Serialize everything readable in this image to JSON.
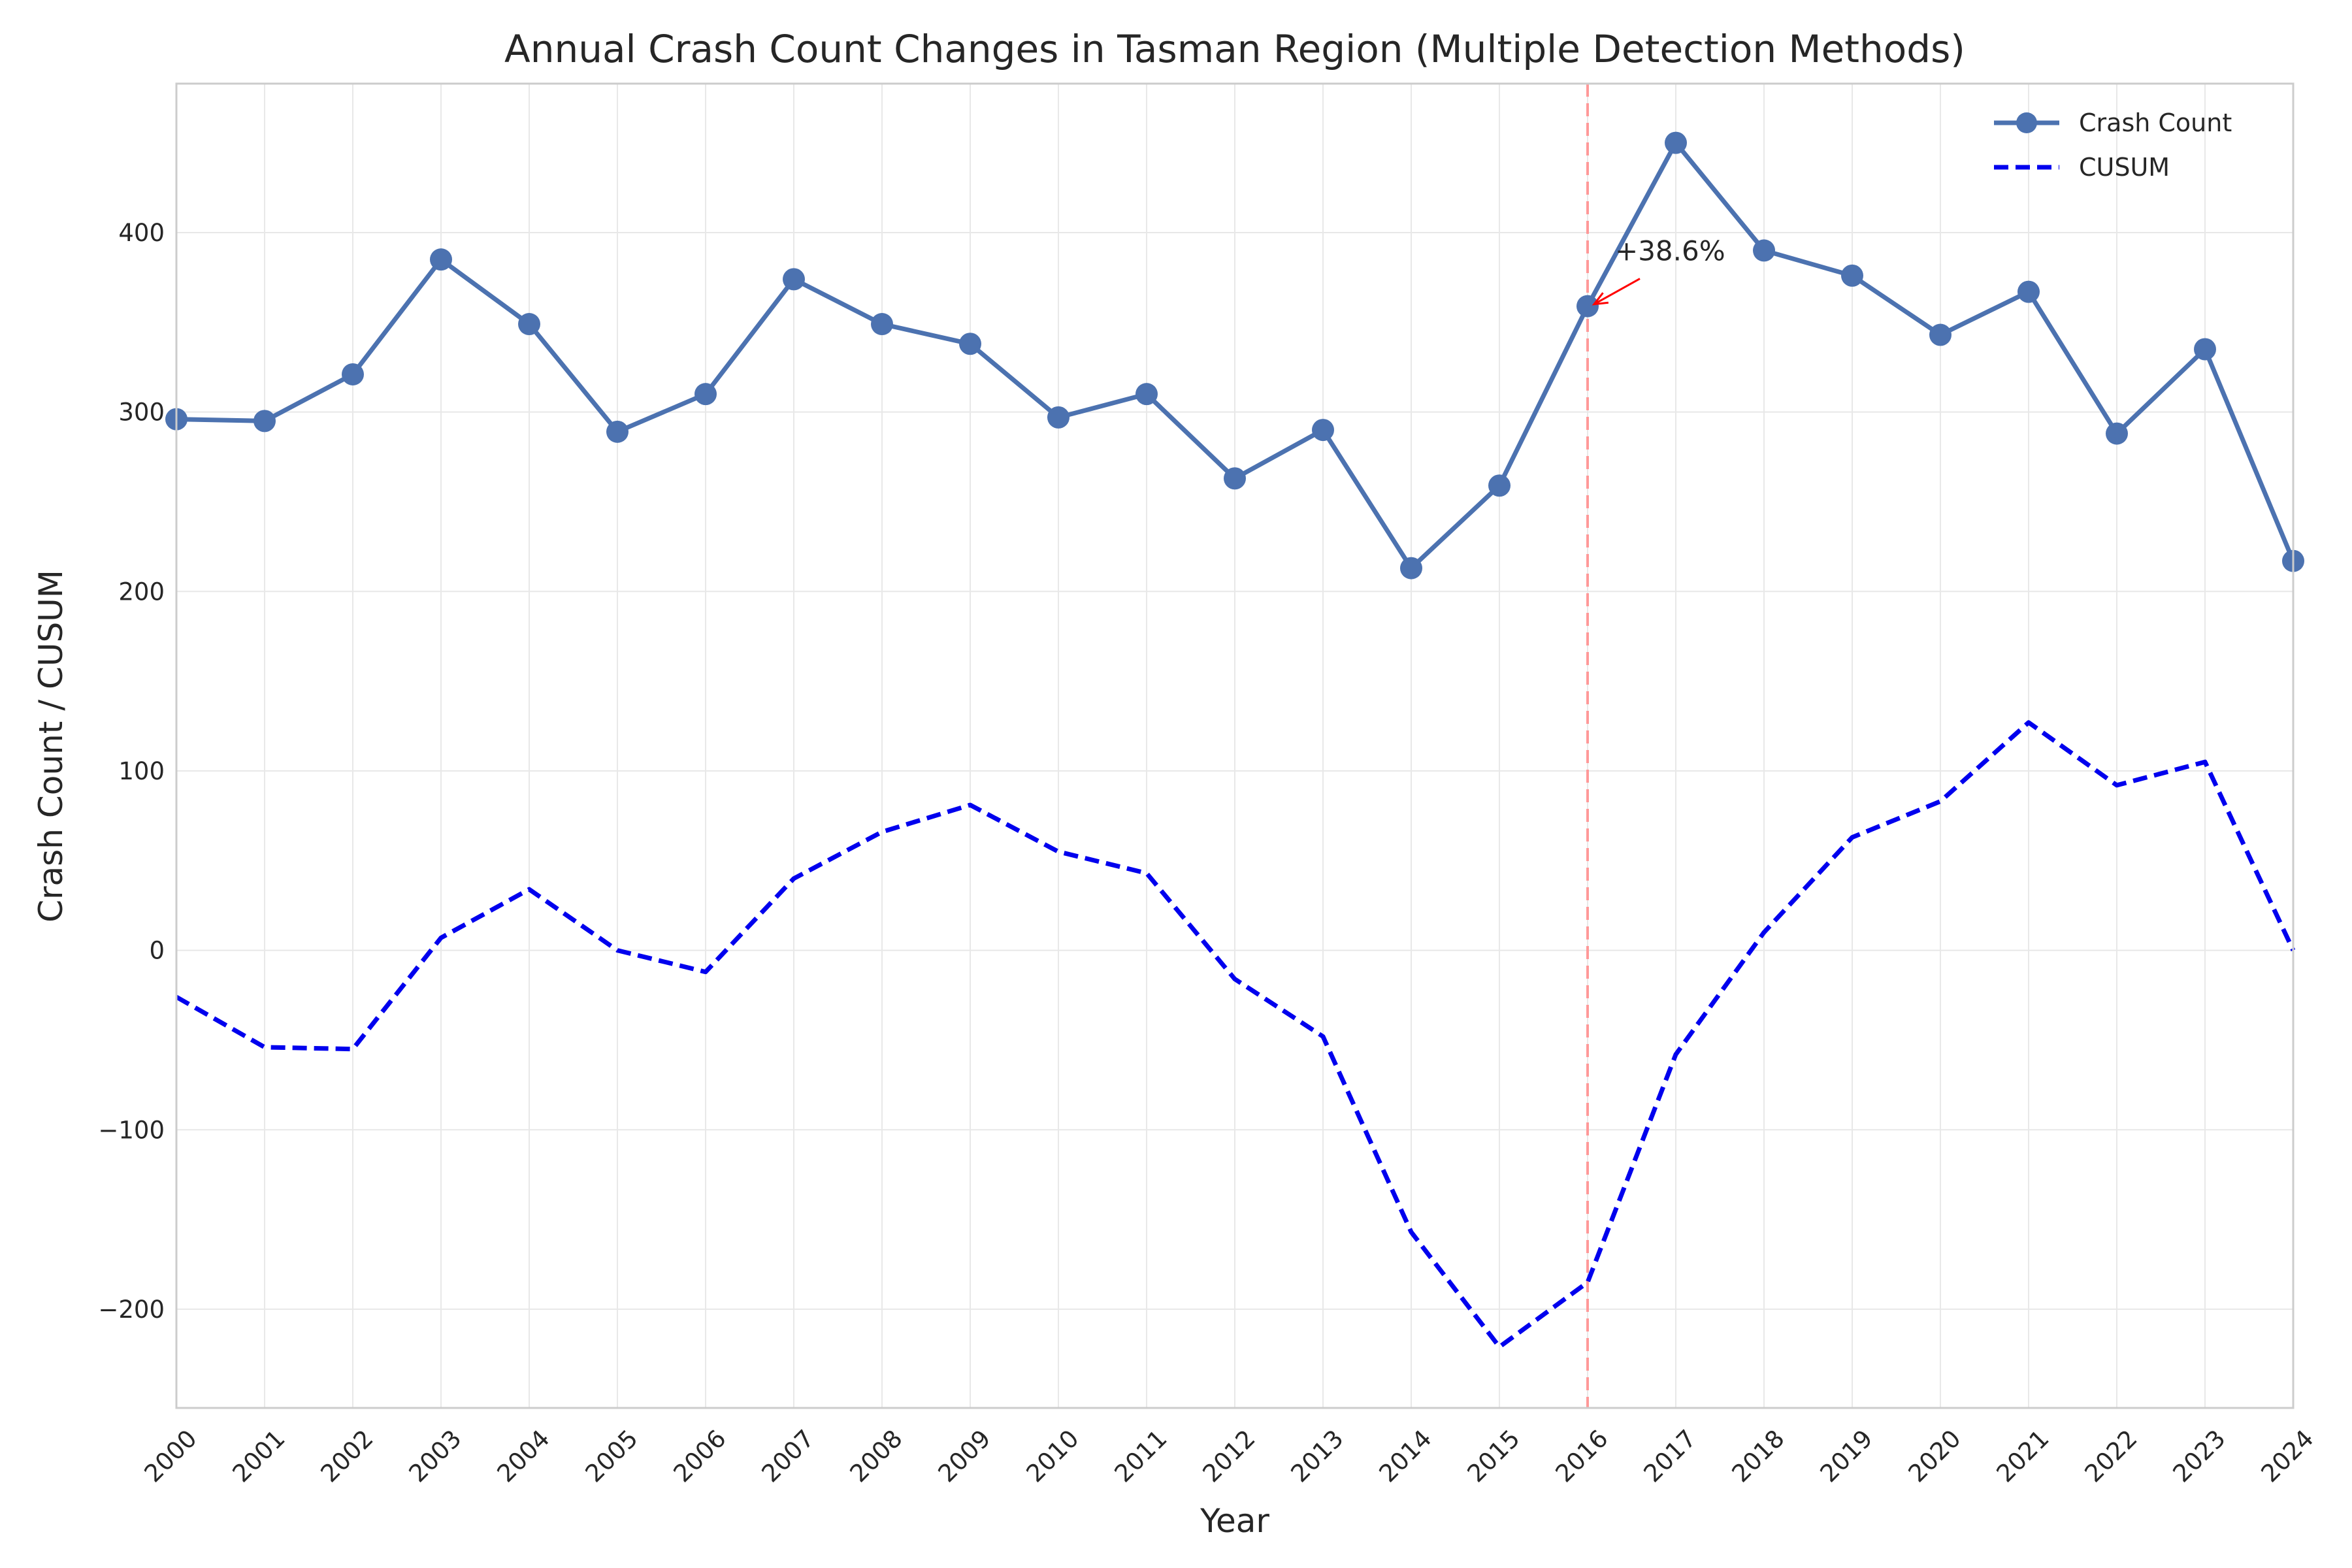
{
  "chart_data": {
    "type": "line",
    "title": "Annual Crash Count Changes in Tasman Region (Multiple Detection Methods)",
    "xlabel": "Year",
    "ylabel": "Crash Count / CUSUM",
    "x": [
      2000,
      2001,
      2002,
      2003,
      2004,
      2005,
      2006,
      2007,
      2008,
      2009,
      2010,
      2011,
      2012,
      2013,
      2014,
      2015,
      2016,
      2017,
      2018,
      2019,
      2020,
      2021,
      2022,
      2023,
      2024
    ],
    "x_tick_labels": [
      "2000",
      "2001",
      "2002",
      "2003",
      "2004",
      "2005",
      "2006",
      "2007",
      "2008",
      "2009",
      "2010",
      "2011",
      "2012",
      "2013",
      "2014",
      "2015",
      "2016",
      "2017",
      "2018",
      "2019",
      "2020",
      "2021",
      "2022",
      "2023",
      "2024"
    ],
    "xlim": [
      2000,
      2024
    ],
    "ylim": [
      -255,
      483
    ],
    "y_ticks": [
      -200,
      -100,
      0,
      100,
      200,
      300,
      400
    ],
    "y_tick_labels": [
      "−200",
      "−100",
      "0",
      "100",
      "200",
      "300",
      "400"
    ],
    "grid": true,
    "legend_position": "top-right",
    "series": [
      {
        "name": "Crash Count",
        "style": "solid-with-circle-markers",
        "color": "#4c72b0",
        "values": [
          296,
          295,
          321,
          385,
          349,
          289,
          310,
          374,
          349,
          338,
          297,
          310,
          263,
          290,
          213,
          259,
          359,
          450,
          390,
          376,
          343,
          367,
          288,
          335,
          217
        ]
      },
      {
        "name": "CUSUM",
        "style": "dashed",
        "color": "#0000ee",
        "values": [
          -26,
          -54,
          -55,
          7,
          34,
          0,
          -12,
          40,
          66,
          81,
          55,
          43,
          -16,
          -48,
          -157,
          -221,
          -185,
          -58,
          10,
          63,
          83,
          127,
          92,
          105,
          0
        ]
      }
    ],
    "change_point": {
      "x": 2016,
      "color": "#ff9999",
      "style": "dashed"
    },
    "annotation": {
      "text": "+38.6%",
      "x": 2016,
      "y": 359,
      "arrow_color": "#ff0000"
    }
  }
}
